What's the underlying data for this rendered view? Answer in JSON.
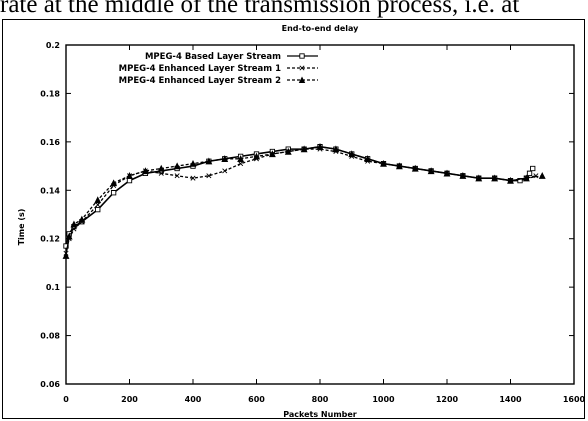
{
  "document": {
    "caption_fragment": "rate at the middle of the transmission process, i.e. at"
  },
  "chart_data": {
    "type": "line",
    "title": "End-to-end delay",
    "xlabel": "Packets Number",
    "ylabel": "Time (s)",
    "xlim": [
      0,
      1600
    ],
    "ylim": [
      0.06,
      0.2
    ],
    "xticks": [
      0,
      200,
      400,
      600,
      800,
      1000,
      1200,
      1400,
      1600
    ],
    "xtick_labels": [
      "0",
      "200",
      "400",
      "600",
      "800",
      "1000",
      "1200",
      "1400",
      "1600"
    ],
    "yticks": [
      0.06,
      0.08,
      0.1,
      0.12,
      0.14,
      0.16,
      0.18,
      0.2
    ],
    "ytick_labels": [
      "0.06",
      "0.08",
      "0.1",
      "0.12",
      "0.14",
      "0.16",
      "0.18",
      "0.2"
    ],
    "grid": false,
    "legend_position": "top-left",
    "series": [
      {
        "name": "MPEG-4 Based Layer Stream",
        "marker": "square",
        "line_style": "solid",
        "color": "#000000",
        "x": [
          0,
          10,
          25,
          50,
          100,
          150,
          200,
          250,
          300,
          350,
          400,
          450,
          500,
          550,
          600,
          650,
          700,
          750,
          800,
          850,
          900,
          950,
          1000,
          1050,
          1100,
          1150,
          1200,
          1250,
          1300,
          1350,
          1400,
          1430,
          1450,
          1460,
          1470
        ],
        "y": [
          0.117,
          0.122,
          0.125,
          0.127,
          0.132,
          0.139,
          0.144,
          0.147,
          0.148,
          0.149,
          0.15,
          0.152,
          0.153,
          0.154,
          0.155,
          0.156,
          0.157,
          0.157,
          0.158,
          0.157,
          0.155,
          0.153,
          0.151,
          0.15,
          0.149,
          0.148,
          0.147,
          0.146,
          0.145,
          0.145,
          0.144,
          0.144,
          0.145,
          0.147,
          0.149
        ]
      },
      {
        "name": "MPEG-4 Enhanced Layer Stream 1",
        "marker": "cross",
        "line_style": "dashed",
        "color": "#000000",
        "x": [
          0,
          10,
          25,
          50,
          100,
          150,
          200,
          250,
          300,
          350,
          400,
          450,
          500,
          550,
          600,
          650,
          700,
          750,
          800,
          850,
          900,
          950,
          1000,
          1050,
          1100,
          1150,
          1200,
          1250,
          1300,
          1350,
          1400,
          1450,
          1480
        ],
        "y": [
          0.114,
          0.12,
          0.124,
          0.127,
          0.134,
          0.142,
          0.146,
          0.148,
          0.147,
          0.146,
          0.145,
          0.146,
          0.148,
          0.151,
          0.153,
          0.155,
          0.156,
          0.157,
          0.157,
          0.156,
          0.154,
          0.152,
          0.151,
          0.15,
          0.149,
          0.148,
          0.147,
          0.146,
          0.145,
          0.145,
          0.144,
          0.145,
          0.146
        ]
      },
      {
        "name": "MPEG-4 Enhanced Layer Stream 2",
        "marker": "triangle",
        "line_style": "dashed",
        "color": "#000000",
        "x": [
          0,
          10,
          25,
          50,
          100,
          150,
          200,
          250,
          300,
          350,
          400,
          450,
          500,
          550,
          600,
          650,
          700,
          750,
          800,
          850,
          900,
          950,
          1000,
          1050,
          1100,
          1150,
          1200,
          1250,
          1300,
          1350,
          1400,
          1450,
          1500
        ],
        "y": [
          0.113,
          0.121,
          0.126,
          0.128,
          0.136,
          0.143,
          0.146,
          0.148,
          0.149,
          0.15,
          0.151,
          0.152,
          0.153,
          0.153,
          0.154,
          0.155,
          0.156,
          0.157,
          0.158,
          0.157,
          0.155,
          0.153,
          0.151,
          0.15,
          0.149,
          0.148,
          0.147,
          0.146,
          0.145,
          0.145,
          0.144,
          0.145,
          0.146
        ]
      }
    ]
  }
}
